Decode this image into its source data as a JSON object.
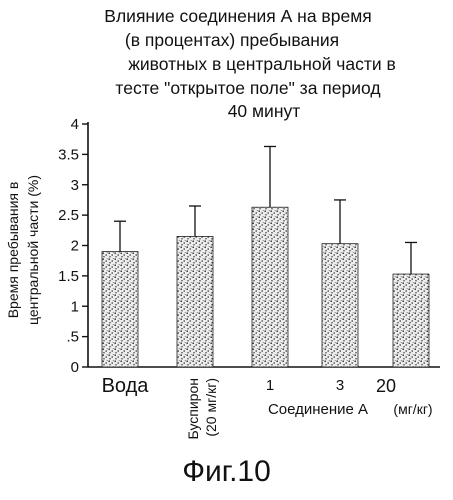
{
  "chart_data": {
    "type": "bar",
    "title_lines": [
      "Влияние соединения А на время",
      "(в процентах) пребывания",
      "животных в центральной части в",
      "тесте \"открытое поле\" за период",
      "40 минут"
    ],
    "ylabel_lines": [
      "Время пребывания в",
      "центральной части (%)"
    ],
    "y_ticks": [
      "0",
      ".5",
      "1",
      "1.5",
      "2",
      "2.5",
      "3",
      "3.5",
      "4"
    ],
    "ylim": [
      0,
      4
    ],
    "categories": [
      "Вода",
      "Буспирон",
      "1",
      "3",
      "20"
    ],
    "buspirone_dose": "(20 мг/кг)",
    "compound_label": "Соединение А",
    "compound_units": "(мг/кг)",
    "values": [
      1.9,
      2.15,
      2.63,
      2.03,
      1.53
    ],
    "errors": [
      0.5,
      0.5,
      1.0,
      0.72,
      0.52
    ],
    "bar_pattern": "stippled",
    "grid": false
  },
  "figure_label": "Фиг.10"
}
